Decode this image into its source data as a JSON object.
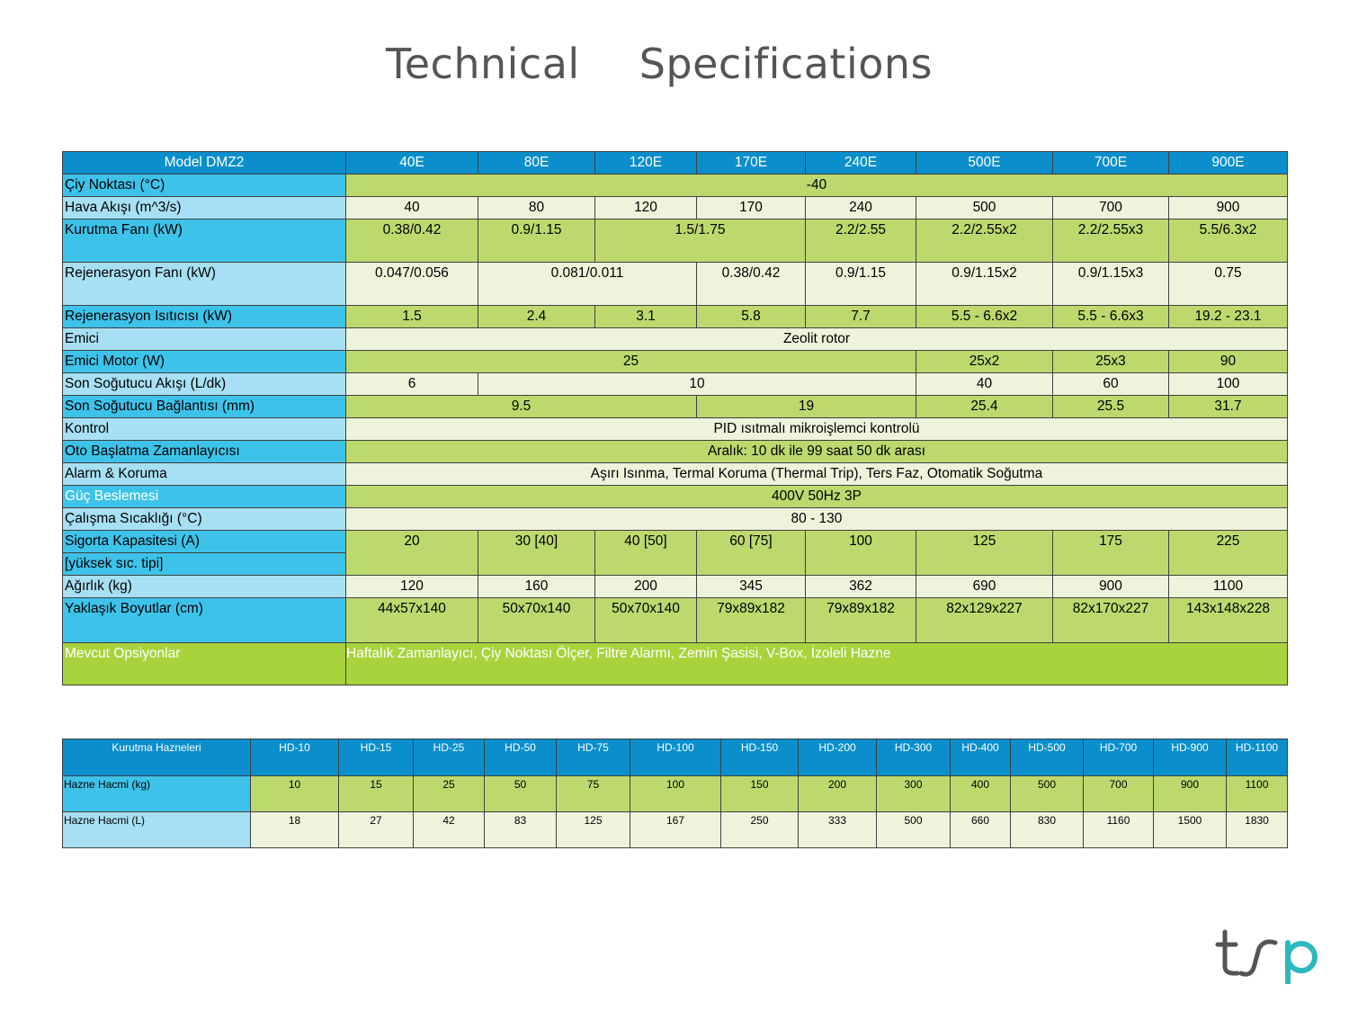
{
  "title": {
    "word1": "Technical",
    "word2": "Specifications"
  },
  "spec": {
    "header": {
      "label": "Model DMZ2",
      "models": [
        "40E",
        "80E",
        "120E",
        "170E",
        "240E",
        "500E",
        "700E",
        "900E"
      ]
    },
    "dew_point": {
      "label": "Çiy Noktası (°C)",
      "value": "-40"
    },
    "air_flow": {
      "label": "Hava Akışı (m^3/s)",
      "values": [
        "40",
        "80",
        "120",
        "170",
        "240",
        "500",
        "700",
        "900"
      ]
    },
    "drying_fan": {
      "label": "Kurutma Fanı (kW)",
      "v40": "0.38/0.42",
      "v80": "0.9/1.15",
      "v120_170": "1.5/1.75",
      "v240": "2.2/2.55",
      "v500": "2.2/2.55x2",
      "v700": "2.2/2.55x3",
      "v900": "5.5/6.3x2"
    },
    "regen_fan": {
      "label": "Rejenerasyon Fanı (kW)",
      "v40": "0.047/0.056",
      "v80_120": "0.081/0.011",
      "v170": "0.38/0.42",
      "v240": "0.9/1.15",
      "v500": "0.9/1.15x2",
      "v700": "0.9/1.15x3",
      "v900": "0.75"
    },
    "regen_heater": {
      "label": "Rejenerasyon Isıtıcısı (kW)",
      "values": [
        "1.5",
        "2.4",
        "3.1",
        "5.8",
        "7.7",
        "5.5 - 6.6x2",
        "5.5 - 6.6x3",
        "19.2 - 23.1"
      ]
    },
    "absorber": {
      "label": "Emici",
      "value": "Zeolit rotor"
    },
    "absorber_motor": {
      "label": "Emici Motor (W)",
      "v_small": "25",
      "v500": "25x2",
      "v700": "25x3",
      "v900": "90"
    },
    "aftercooler_flow": {
      "label": "Son Soğutucu Akışı (L/dk)",
      "v40": "6",
      "v80_240": "10",
      "v500": "40",
      "v700": "60",
      "v900": "100"
    },
    "aftercooler_conn": {
      "label": "Son Soğutucu Bağlantısı (mm)",
      "v40_120": "9.5",
      "v170_240": "19",
      "v500": "25.4",
      "v700": "25.5",
      "v900": "31.7"
    },
    "control": {
      "label": "Kontrol",
      "value": "PID ısıtmalı mikroişlemci kontrolü"
    },
    "auto_start": {
      "label": "Oto Başlatma Zamanlayıcısı",
      "value": "Aralık: 10 dk ile 99 saat 50 dk arası"
    },
    "alarm": {
      "label": "Alarm & Koruma",
      "value": "Aşırı Isınma, Termal Koruma (Thermal Trip), Ters Faz, Otomatik Soğutma"
    },
    "power": {
      "label": "Güç Beslemesi",
      "value": "400V 50Hz 3P"
    },
    "operating_temp": {
      "label": "Çalışma Sıcaklığı (°C)",
      "value": "80 - 130"
    },
    "fuse": {
      "label": "Sigorta Kapasitesi (A)",
      "sublabel": "[yüksek sıc. tipi]",
      "values": [
        "20",
        "30 [40]",
        "40 [50]",
        "60 [75]",
        "100",
        "125",
        "175",
        "225"
      ]
    },
    "weight": {
      "label": "Ağırlık (kg)",
      "values": [
        "120",
        "160",
        "200",
        "345",
        "362",
        "690",
        "900",
        "1100"
      ]
    },
    "dimensions": {
      "label": "Yaklaşık Boyutlar (cm)",
      "values": [
        "44x57x140",
        "50x70x140",
        "50x70x140",
        "79x89x182",
        "79x89x182",
        "82x129x227",
        "82x170x227",
        "143x148x228"
      ]
    },
    "options": {
      "label": "Mevcut Opsiyonlar",
      "value": "Haftalık Zamanlayıcı, Çiy Noktası Ölçer, Filtre Alarmı, Zemin Şasisi, V-Box, İzoleli Hazne"
    }
  },
  "hoppers": {
    "header": {
      "label": "Kurutma Hazneleri",
      "models": [
        "HD-10",
        "HD-15",
        "HD-25",
        "HD-50",
        "HD-75",
        "HD-100",
        "HD-150",
        "HD-200",
        "HD-300",
        "HD-400",
        "HD-500",
        "HD-700",
        "HD-900",
        "HD-1100"
      ]
    },
    "capacity_kg": {
      "label": "Hazne Hacmi (kg)",
      "values": [
        "10",
        "15",
        "25",
        "50",
        "75",
        "100",
        "150",
        "200",
        "300",
        "400",
        "500",
        "700",
        "900",
        "1100"
      ]
    },
    "capacity_l": {
      "label": "Hazne Hacmi (L)",
      "values": [
        "18",
        "27",
        "42",
        "83",
        "125",
        "167",
        "250",
        "333",
        "500",
        "660",
        "830",
        "1160",
        "1500",
        "1830"
      ]
    }
  },
  "logo": {
    "text": "tsp",
    "colors": {
      "dark": "#555555",
      "accent": "#2cb8bf"
    }
  }
}
